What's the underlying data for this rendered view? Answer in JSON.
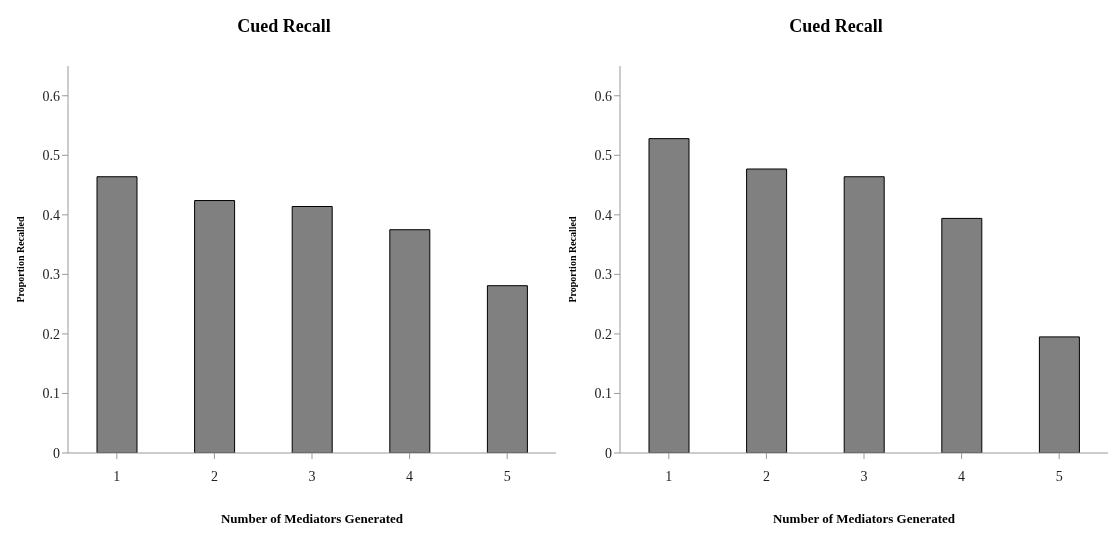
{
  "chart_data": [
    {
      "type": "bar",
      "title": "Cued Recall",
      "xlabel": "Number of Mediators Generated",
      "ylabel": "Proportion Recalled",
      "categories": [
        "1",
        "2",
        "3",
        "4",
        "5"
      ],
      "values": [
        0.464,
        0.424,
        0.414,
        0.375,
        0.281
      ],
      "color": "#808080",
      "ylim": [
        0,
        0.65
      ],
      "yticks": [
        0,
        0.1,
        0.2,
        0.3,
        0.4,
        0.5,
        0.6
      ],
      "grid": false,
      "legend": false
    },
    {
      "type": "bar",
      "title": "Cued Recall",
      "xlabel": "Number of Mediators Generated",
      "ylabel": "Proportion Recalled",
      "categories": [
        "1",
        "2",
        "3",
        "4",
        "5"
      ],
      "values": [
        0.528,
        0.477,
        0.464,
        0.394,
        0.195
      ],
      "color": "#808080",
      "ylim": [
        0,
        0.65
      ],
      "yticks": [
        0,
        0.1,
        0.2,
        0.3,
        0.4,
        0.5,
        0.6
      ],
      "grid": false,
      "legend": false
    }
  ]
}
